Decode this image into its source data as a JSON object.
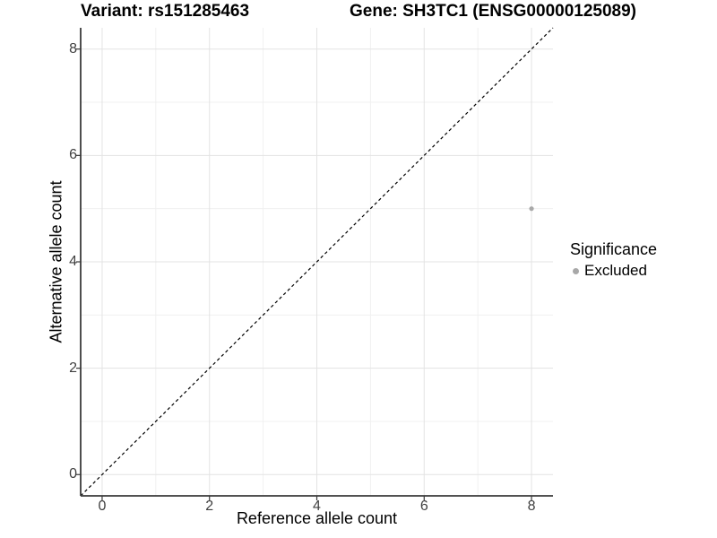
{
  "chart_data": {
    "type": "scatter",
    "title_left": "Variant: rs151285463",
    "title_right": "Gene: SH3TC1 (ENSG00000125089)",
    "xlabel": "Reference allele count",
    "ylabel": "Alternative allele count",
    "xlim": [
      -0.4,
      8.4
    ],
    "ylim": [
      -0.4,
      8.4
    ],
    "x_ticks": [
      0,
      2,
      4,
      6,
      8
    ],
    "y_ticks": [
      0,
      2,
      4,
      6,
      8
    ],
    "x_minor": [
      1,
      3,
      5,
      7
    ],
    "y_minor": [
      1,
      3,
      5,
      7
    ],
    "grid": true,
    "background": "#ffffff",
    "identity_line": {
      "style": "dashed",
      "color": "#000000"
    },
    "series": [
      {
        "name": "Excluded",
        "color": "#a8a8a8",
        "points": [
          {
            "x": 8,
            "y": 5
          }
        ]
      }
    ],
    "legend": {
      "title": "Significance",
      "position": "right",
      "items": [
        {
          "label": "Excluded",
          "color": "#a8a8a8"
        }
      ]
    },
    "colors": {
      "grid_major": "#e3e3e3",
      "grid_minor": "#f0f0f0",
      "axis": "#3a3a3a",
      "tick_text": "#404040"
    }
  }
}
